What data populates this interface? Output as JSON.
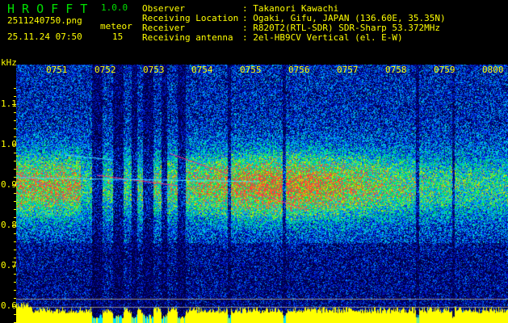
{
  "app": {
    "name": "H R O F F T",
    "version": "1.0.0"
  },
  "file": {
    "name": "2511240750.png",
    "datetime": "25.11.24 07:50"
  },
  "meteor": {
    "label": "meteor",
    "count": "15"
  },
  "info": [
    {
      "label": "Observer",
      "value": ": Takanori Kawachi"
    },
    {
      "label": "Receiving Location",
      "value": ": Ogaki, Gifu, JAPAN (136.60E, 35.35N)"
    },
    {
      "label": "Receiver",
      "value": ": R820T2(RTL-SDR) SDR-Sharp 53.372MHz"
    },
    {
      "label": "Receiving antenna",
      "value": ": 2el-HB9CV Vertical (el. E-W)"
    }
  ],
  "spectrogram": {
    "y_unit": "kHz",
    "y_ticks": [
      "1.1",
      "1.0",
      "0.9",
      "0.8",
      "0.7",
      "0.6"
    ],
    "time_ticks": [
      "0751",
      "0752",
      "0753",
      "0754",
      "0755",
      "0756",
      "0757",
      "0758",
      "0759",
      "0800"
    ],
    "colors": {
      "label": "#ffff00",
      "logo": "#00e000",
      "signal_bar": "#ffff00",
      "dropout_bar": "#00e0ff"
    }
  }
}
